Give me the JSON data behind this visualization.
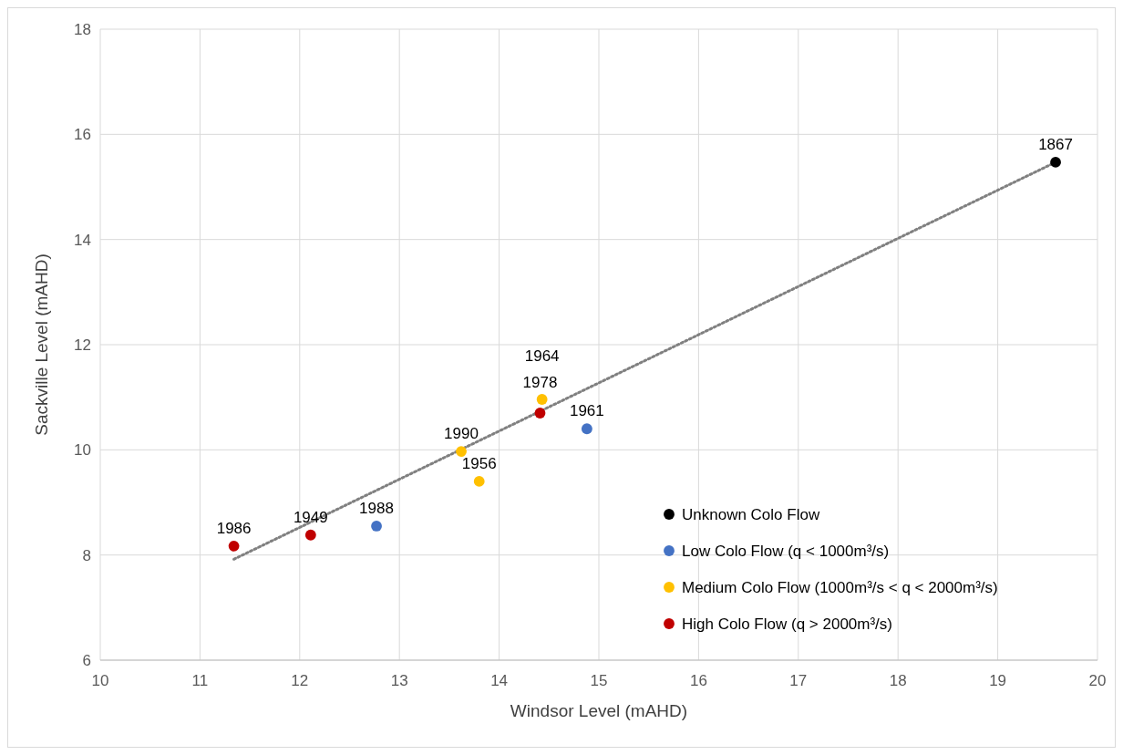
{
  "chart_data": {
    "type": "scatter",
    "xlabel": "Windsor Level (mAHD)",
    "ylabel": "Sackville Level (mAHD)",
    "xlim": [
      10,
      20
    ],
    "xticks": [
      10,
      11,
      12,
      13,
      14,
      15,
      16,
      17,
      18,
      19,
      20
    ],
    "ylim": [
      6,
      18
    ],
    "yticks": [
      6,
      8,
      10,
      12,
      14,
      16,
      18
    ],
    "grid": true,
    "legend": "bottom right",
    "marker": "circle",
    "series": [
      {
        "type": "line",
        "color": "#808080",
        "line_style": "dotted",
        "marker": "none",
        "x": [
          11.34,
          19.58
        ],
        "values": [
          7.92,
          15.47
        ]
      },
      {
        "name": "Unknown Colo Flow",
        "color": "#000000",
        "x": [
          19.58
        ],
        "values": [
          15.47
        ]
      },
      {
        "name": "Low Colo Flow (q < 1000m³/s)",
        "color": "#4472c4",
        "x": [
          14.88,
          12.77
        ],
        "values": [
          10.4,
          8.55
        ]
      },
      {
        "name": "Medium Colo Flow (1000m³/s < q < 2000m³/s)",
        "color": "#ffc000",
        "x": [
          14.43,
          13.62,
          13.8
        ],
        "values": [
          10.96,
          9.97,
          9.4
        ]
      },
      {
        "name": "High Colo Flow (q > 2000m³/s)",
        "color": "#c00000",
        "x": [
          14.41,
          12.11,
          11.34
        ],
        "values": [
          10.7,
          8.38,
          8.17
        ]
      }
    ],
    "annotations": [
      {
        "text": "1867",
        "x": 19.58,
        "y": 15.47
      },
      {
        "text": "1961",
        "x": 14.88,
        "y": 10.4
      },
      {
        "text": "1978",
        "x": 14.41,
        "y": 10.7
      },
      {
        "text": "1964",
        "x": 14.43,
        "y": 10.96
      },
      {
        "text": "1990",
        "x": 13.62,
        "y": 9.97
      },
      {
        "text": "1956",
        "x": 13.8,
        "y": 9.4
      },
      {
        "text": "1988",
        "x": 12.77,
        "y": 8.55
      },
      {
        "text": "1949",
        "x": 12.11,
        "y": 8.38
      },
      {
        "text": "1986",
        "x": 11.34,
        "y": 8.17
      }
    ]
  }
}
